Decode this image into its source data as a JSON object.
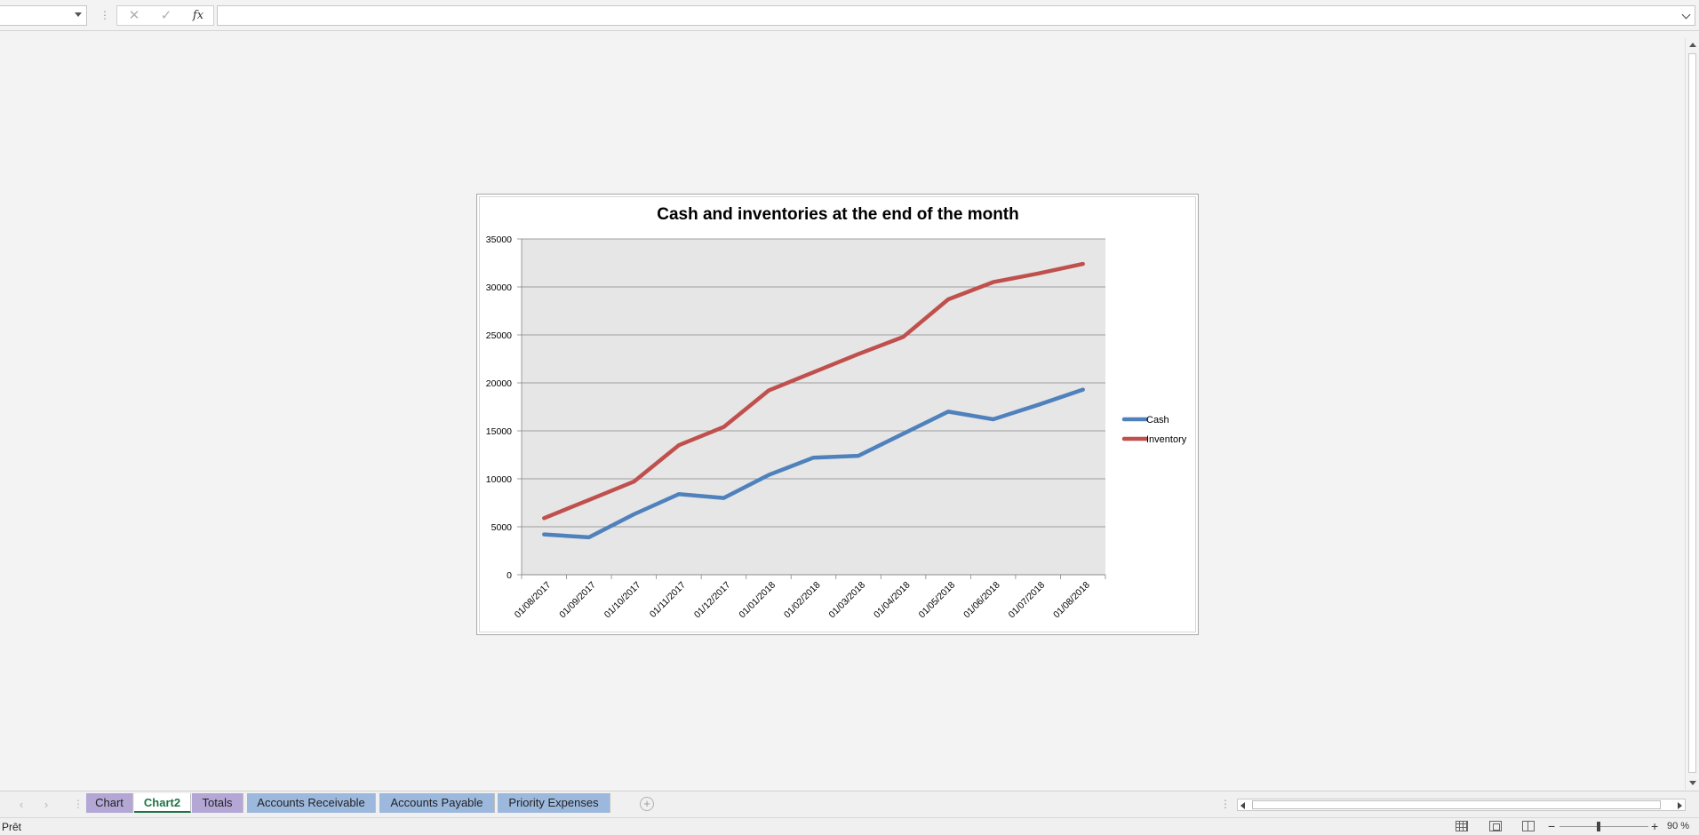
{
  "formula_bar": {
    "name_box_value": "",
    "cancel_symbol": "✕",
    "enter_symbol": "✓",
    "fx_label": "fx",
    "formula_value": ""
  },
  "chart_data": {
    "type": "line",
    "title": "Cash and inventories at the end of the month",
    "categories": [
      "01/08/2017",
      "01/09/2017",
      "01/10/2017",
      "01/11/2017",
      "01/12/2017",
      "01/01/2018",
      "01/02/2018",
      "01/03/2018",
      "01/04/2018",
      "01/05/2018",
      "01/06/2018",
      "01/07/2018",
      "01/08/2018"
    ],
    "series": [
      {
        "name": "Cash",
        "color": "#4f81bd",
        "values": [
          4200,
          3900,
          6300,
          8400,
          8000,
          10400,
          12200,
          12400,
          14700,
          17000,
          16200,
          17700,
          19300
        ]
      },
      {
        "name": "Inventory",
        "color": "#c0504d",
        "values": [
          5900,
          7800,
          9700,
          13500,
          15400,
          19200,
          21100,
          23000,
          24800,
          28700,
          30500,
          31400,
          32400
        ]
      }
    ],
    "ylim": [
      0,
      35000
    ],
    "yticks": [
      0,
      5000,
      10000,
      15000,
      20000,
      25000,
      30000,
      35000
    ],
    "ytick_labels": [
      "0",
      "5000",
      "10000",
      "15000",
      "20000",
      "25000",
      "30000",
      "35000"
    ],
    "xlabel": "",
    "ylabel": "",
    "grid": true,
    "legend_position": "right",
    "plot_background": "#e6e6e6"
  },
  "sheet_tabs": [
    {
      "label": "Chart",
      "color": "purple",
      "active": false
    },
    {
      "label": "Chart2",
      "color": "white",
      "active": true
    },
    {
      "label": "Totals",
      "color": "purple",
      "active": false
    },
    {
      "label": "Accounts Receivable",
      "color": "blue",
      "active": false
    },
    {
      "label": "Accounts Payable",
      "color": "blue",
      "active": false
    },
    {
      "label": "Priority Expenses",
      "color": "blue",
      "active": false
    }
  ],
  "tab_nav": {
    "prev": "‹",
    "next": "›",
    "add": "+"
  },
  "status_bar": {
    "status_text": "Prêt",
    "zoom_minus": "−",
    "zoom_plus": "+",
    "zoom_level": "90 %",
    "zoom_percent": 90
  }
}
